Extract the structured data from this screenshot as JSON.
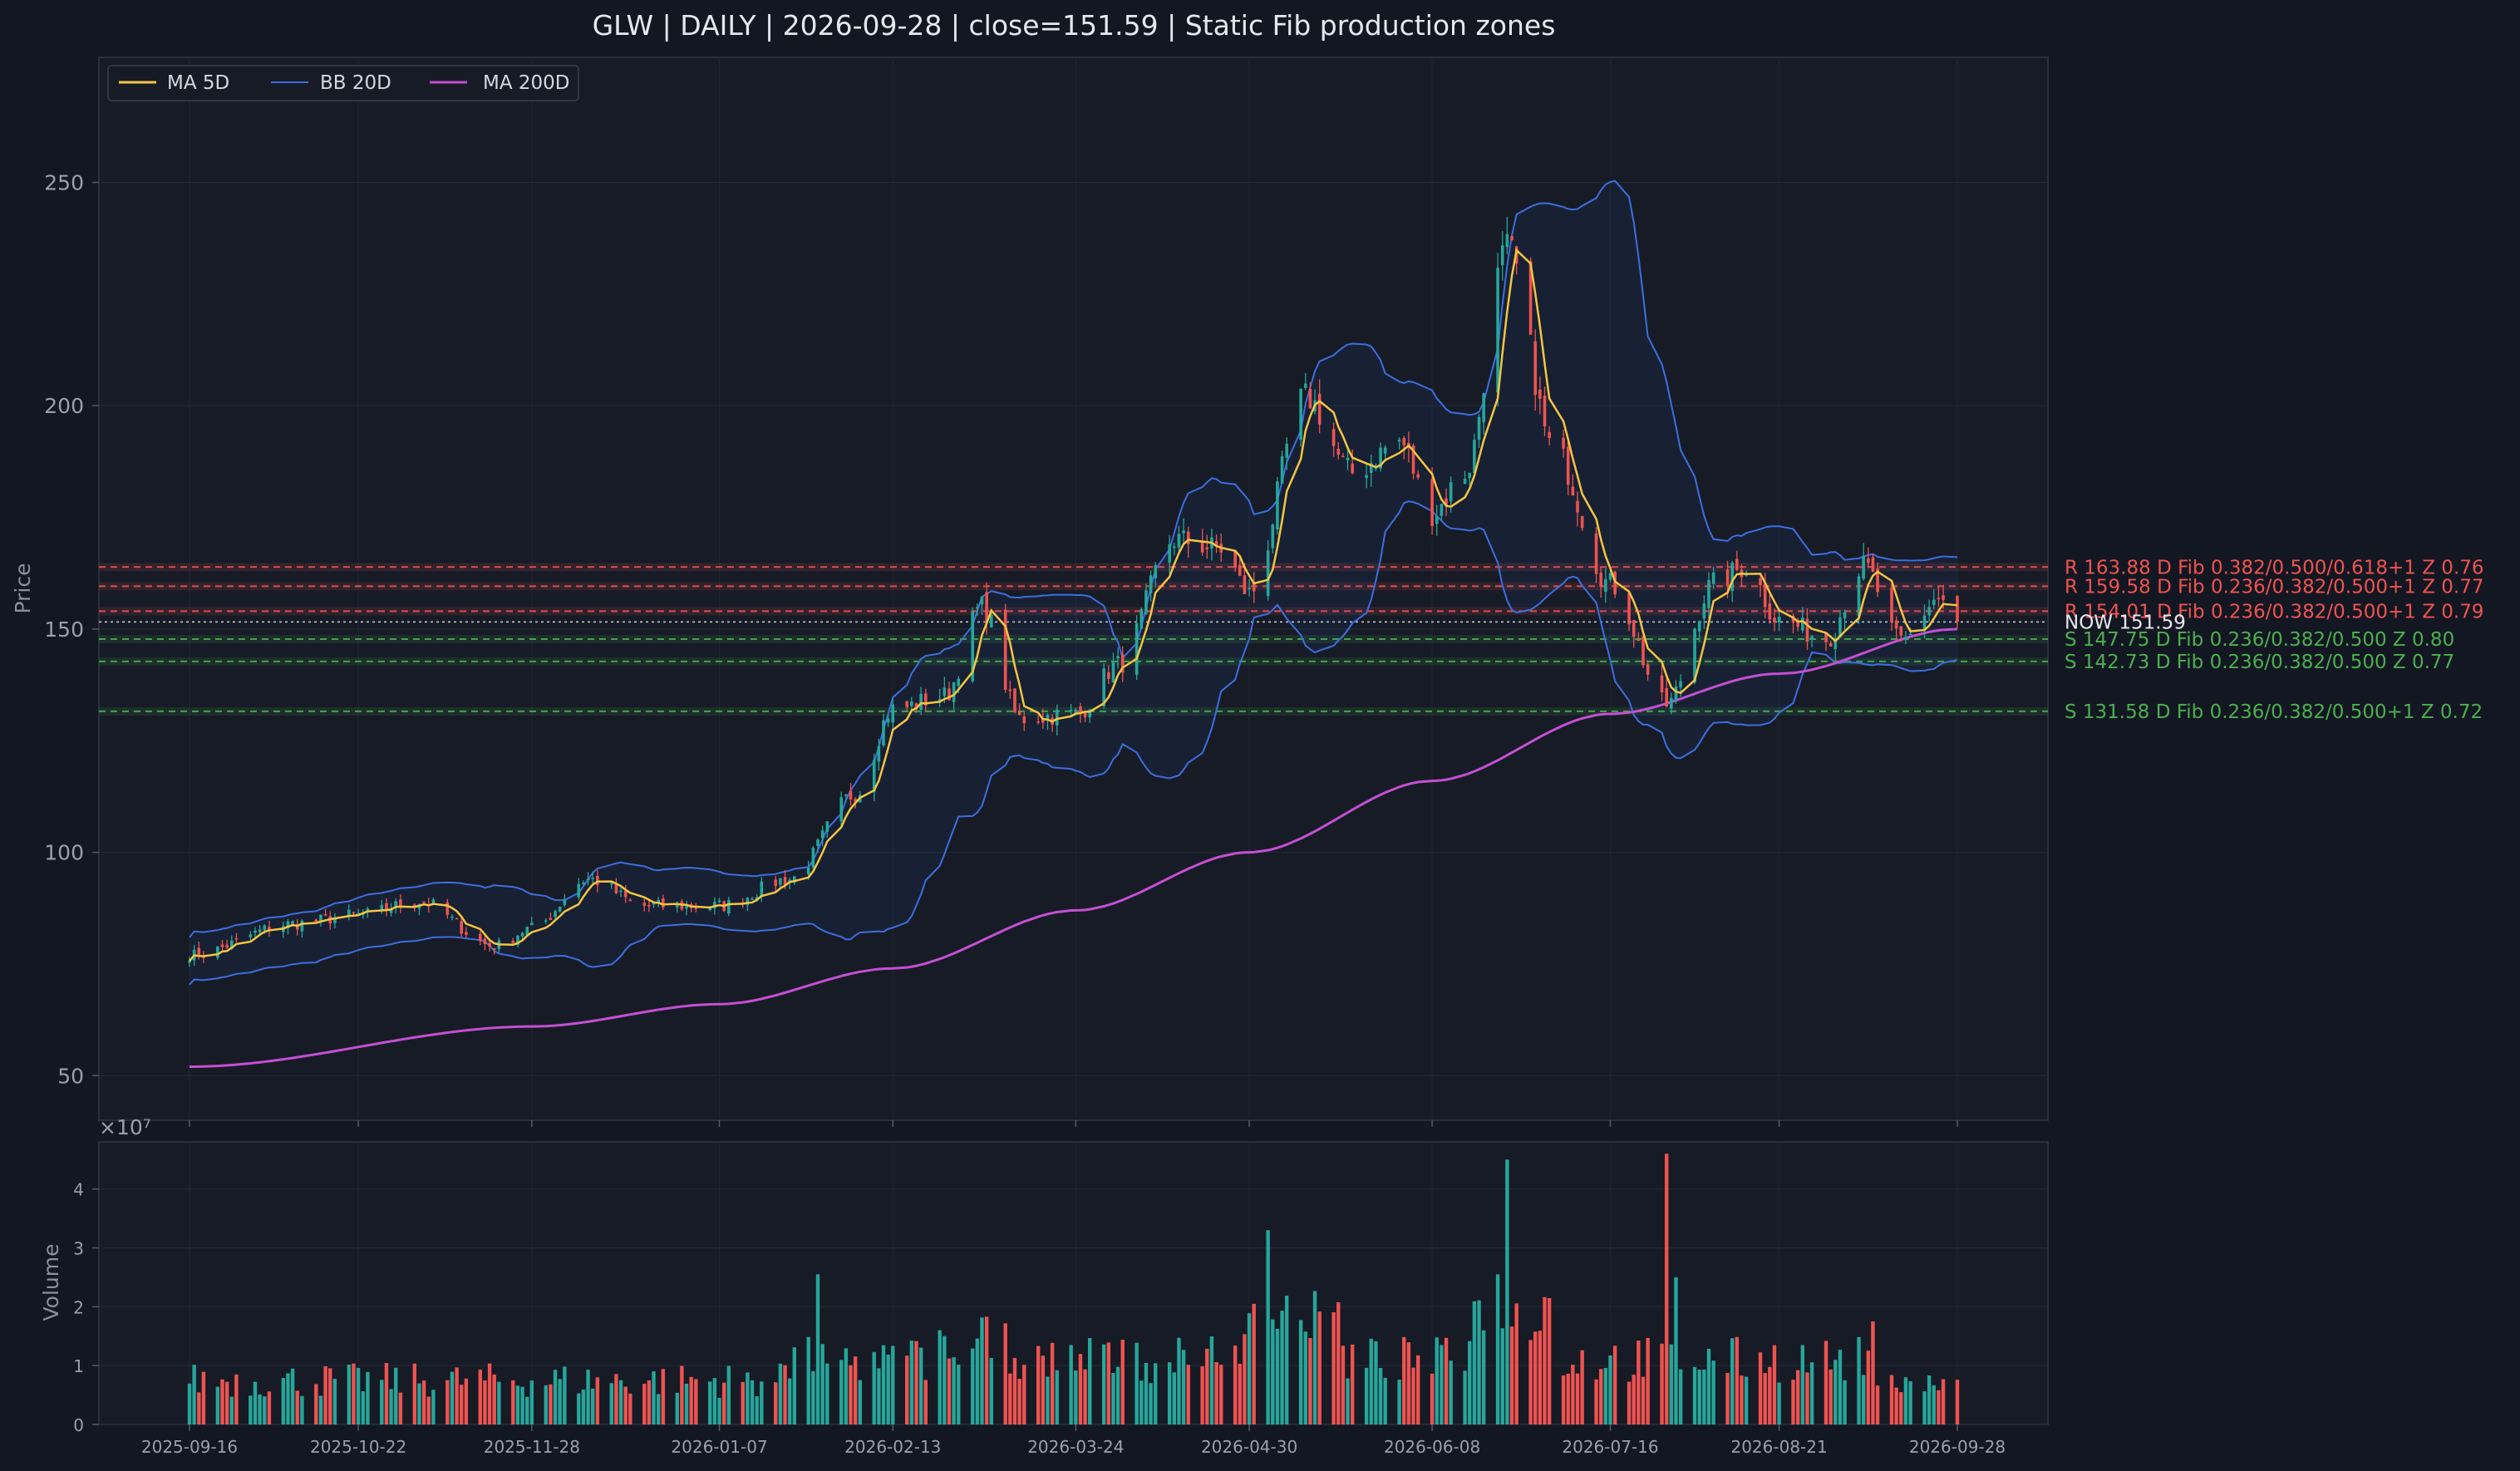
{
  "chart_data": {
    "type": "candlestick",
    "title": "GLW  |  DAILY  |  2026-09-28  |  close=151.59  |  Static Fib production zones",
    "price_panel": {
      "ylabel": "Price",
      "ylim": [
        40,
        278
      ],
      "yticks": [
        50,
        100,
        150,
        200,
        250
      ],
      "grid": true,
      "legend": {
        "placement": "top-left",
        "entries": [
          {
            "name": "MA 5D",
            "color": "#f5c542"
          },
          {
            "name": "BB 20D",
            "color": "#3d6ee0"
          },
          {
            "name": "MA 200D",
            "color": "#c54fd3"
          }
        ]
      },
      "ohlc_anchors": [
        {
          "date": "2025-09-16",
          "close": 77
        },
        {
          "date": "2025-10-08",
          "close": 84
        },
        {
          "date": "2025-10-22",
          "close": 86
        },
        {
          "date": "2025-11-04",
          "close": 89
        },
        {
          "date": "2025-11-20",
          "close": 79
        },
        {
          "date": "2025-11-28",
          "close": 83
        },
        {
          "date": "2025-12-10",
          "close": 94
        },
        {
          "date": "2025-12-22",
          "close": 88
        },
        {
          "date": "2026-01-07",
          "close": 88
        },
        {
          "date": "2026-01-22",
          "close": 94
        },
        {
          "date": "2026-02-05",
          "close": 113
        },
        {
          "date": "2026-02-13",
          "close": 132
        },
        {
          "date": "2026-02-24",
          "close": 135
        },
        {
          "date": "2026-03-04",
          "close": 155
        },
        {
          "date": "2026-03-12",
          "close": 130
        },
        {
          "date": "2026-03-24",
          "close": 131
        },
        {
          "date": "2026-04-02",
          "close": 142
        },
        {
          "date": "2026-04-14",
          "close": 170
        },
        {
          "date": "2026-04-24",
          "close": 168
        },
        {
          "date": "2026-04-30",
          "close": 158
        },
        {
          "date": "2026-05-12",
          "close": 202
        },
        {
          "date": "2026-05-22",
          "close": 185
        },
        {
          "date": "2026-06-01",
          "close": 192
        },
        {
          "date": "2026-06-08",
          "close": 176
        },
        {
          "date": "2026-06-15",
          "close": 185
        },
        {
          "date": "2026-06-24",
          "close": 235
        },
        {
          "date": "2026-07-04",
          "close": 190
        },
        {
          "date": "2026-07-16",
          "close": 160
        },
        {
          "date": "2026-07-28",
          "close": 133
        },
        {
          "date": "2026-08-07",
          "close": 160
        },
        {
          "date": "2026-08-14",
          "close": 164
        },
        {
          "date": "2026-08-21",
          "close": 152
        },
        {
          "date": "2026-08-31",
          "close": 148
        },
        {
          "date": "2026-09-08",
          "close": 164
        },
        {
          "date": "2026-09-16",
          "close": 147
        },
        {
          "date": "2026-09-24",
          "close": 157
        },
        {
          "date": "2026-09-28",
          "close": 151.59
        }
      ],
      "ma200_anchors": [
        {
          "date": "2025-09-16",
          "value": 52
        },
        {
          "date": "2025-11-28",
          "value": 61
        },
        {
          "date": "2026-01-07",
          "value": 66
        },
        {
          "date": "2026-02-13",
          "value": 74
        },
        {
          "date": "2026-03-24",
          "value": 87
        },
        {
          "date": "2026-04-30",
          "value": 100
        },
        {
          "date": "2026-06-08",
          "value": 116
        },
        {
          "date": "2026-07-16",
          "value": 131
        },
        {
          "date": "2026-08-21",
          "value": 140
        },
        {
          "date": "2026-09-28",
          "value": 150
        }
      ],
      "now_line": {
        "label": "NOW 151.59",
        "value": 151.59
      },
      "zones": [
        {
          "kind": "R",
          "level": 163.88,
          "label": "R 163.88  D  Fib 0.382/0.500/0.618+1  Z 0.76",
          "color": "#ef5350"
        },
        {
          "kind": "R",
          "level": 159.58,
          "label": "R 159.58  D  Fib 0.236/0.382/0.500+1  Z 0.77",
          "color": "#ef5350"
        },
        {
          "kind": "R",
          "level": 154.01,
          "label": "R 154.01  D  Fib 0.236/0.382/0.500+1  Z 0.79",
          "color": "#ef5350"
        },
        {
          "kind": "S",
          "level": 147.75,
          "label": "S 147.75  D  Fib 0.236/0.382/0.500  Z 0.80",
          "color": "#4caf50"
        },
        {
          "kind": "S",
          "level": 142.73,
          "label": "S 142.73  D  Fib 0.236/0.382/0.500  Z 0.77",
          "color": "#4caf50"
        },
        {
          "kind": "S",
          "level": 131.58,
          "label": "S 131.58  D  Fib 0.236/0.382/0.500+1  Z 0.72",
          "color": "#4caf50"
        }
      ]
    },
    "volume_panel": {
      "ylabel": "Volume",
      "scale_label": "×10⁷",
      "ylim": [
        0,
        4.8
      ],
      "yticks": [
        0,
        1,
        2,
        3,
        4
      ],
      "spikes": [
        {
          "date": "2026-01-28",
          "value": 2.55
        },
        {
          "date": "2026-05-04",
          "value": 3.3
        },
        {
          "date": "2026-06-22",
          "value": 2.55
        },
        {
          "date": "2026-06-24",
          "value": 4.5
        },
        {
          "date": "2026-07-28",
          "value": 4.6
        },
        {
          "date": "2026-07-30",
          "value": 2.5
        },
        {
          "date": "2026-09-10",
          "value": 1.75
        }
      ]
    },
    "x_axis": {
      "start": "2025-09-16",
      "end": "2026-09-28",
      "ticks": [
        "2025-09-16",
        "2025-10-22",
        "2025-11-28",
        "2026-01-07",
        "2026-02-13",
        "2026-03-24",
        "2026-04-30",
        "2026-06-08",
        "2026-07-16",
        "2026-08-21",
        "2026-09-28"
      ]
    },
    "colors": {
      "background": "#131722",
      "panel": "#161b26",
      "up": "#26a69a",
      "down": "#ef5350",
      "text": "#e6e8ee",
      "muted": "#9aa0ab"
    }
  }
}
